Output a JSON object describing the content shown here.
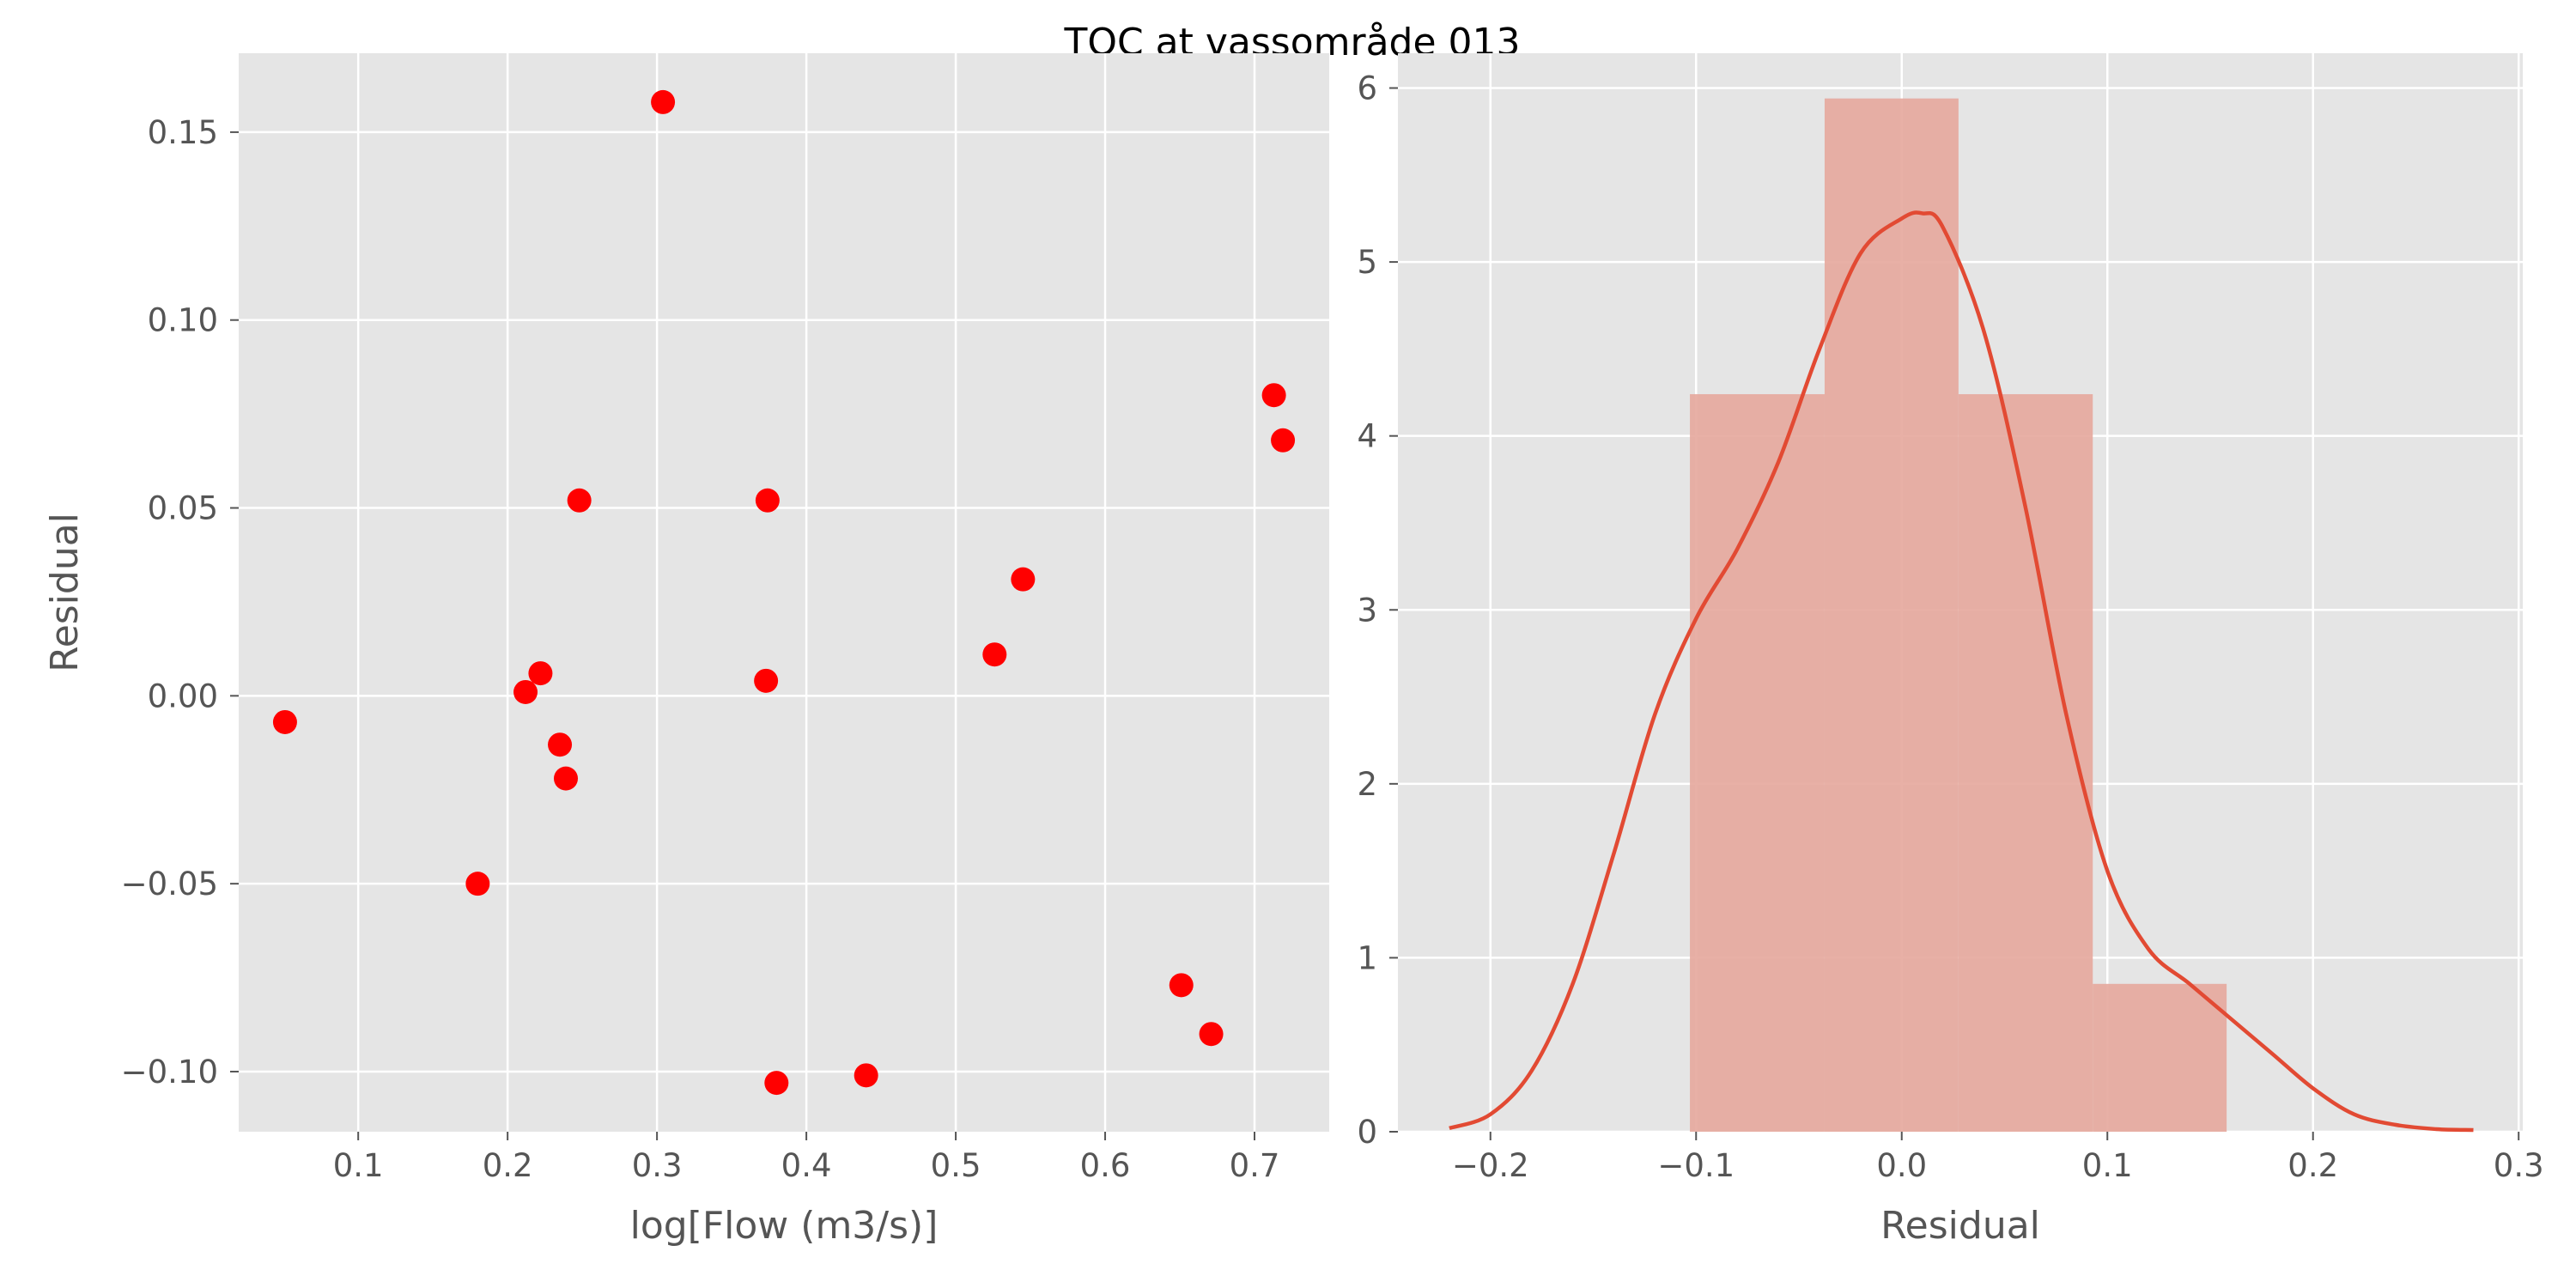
{
  "figure": {
    "title": "TOC at vassområde 013"
  },
  "colors": {
    "panel_bg": "#e5e5e5",
    "grid": "#ffffff",
    "tick_text": "#555555",
    "scatter": "#ff0000",
    "hist_fill": "#e5a79c",
    "kde_line": "#e24a33"
  },
  "chart_data": [
    {
      "type": "scatter",
      "title": "",
      "xlabel": "log[Flow (m3/s)]",
      "ylabel": "Residual",
      "xlim": [
        0.02,
        0.75
      ],
      "ylim": [
        -0.116,
        0.171
      ],
      "xticks": [
        0.1,
        0.2,
        0.3,
        0.4,
        0.5,
        0.6,
        0.7
      ],
      "xtick_labels": [
        "0.1",
        "0.2",
        "0.3",
        "0.4",
        "0.5",
        "0.6",
        "0.7"
      ],
      "yticks": [
        -0.1,
        -0.05,
        0.0,
        0.05,
        0.1,
        0.15
      ],
      "ytick_labels": [
        "−0.10",
        "−0.05",
        "0.00",
        "0.05",
        "0.10",
        "0.15"
      ],
      "grid": true,
      "points": [
        {
          "x": 0.051,
          "y": -0.007
        },
        {
          "x": 0.18,
          "y": -0.05
        },
        {
          "x": 0.212,
          "y": 0.001
        },
        {
          "x": 0.222,
          "y": 0.006
        },
        {
          "x": 0.235,
          "y": -0.013
        },
        {
          "x": 0.239,
          "y": -0.022
        },
        {
          "x": 0.248,
          "y": 0.052
        },
        {
          "x": 0.304,
          "y": 0.158
        },
        {
          "x": 0.373,
          "y": 0.004
        },
        {
          "x": 0.374,
          "y": 0.052
        },
        {
          "x": 0.38,
          "y": -0.103
        },
        {
          "x": 0.44,
          "y": -0.101
        },
        {
          "x": 0.526,
          "y": 0.011
        },
        {
          "x": 0.545,
          "y": 0.031
        },
        {
          "x": 0.651,
          "y": -0.077
        },
        {
          "x": 0.671,
          "y": -0.09
        },
        {
          "x": 0.713,
          "y": 0.08
        },
        {
          "x": 0.719,
          "y": 0.068
        }
      ]
    },
    {
      "type": "histogram",
      "title": "",
      "xlabel": "Residual",
      "ylabel": "",
      "xlim": [
        -0.245,
        0.302
      ],
      "ylim": [
        0,
        6.2
      ],
      "xticks": [
        -0.2,
        -0.1,
        0.0,
        0.1,
        0.2,
        0.3
      ],
      "xtick_labels": [
        "−0.2",
        "−0.1",
        "0.0",
        "0.1",
        "0.2",
        "0.3"
      ],
      "yticks": [
        0,
        1,
        2,
        3,
        4,
        5,
        6
      ],
      "ytick_labels": [
        "0",
        "1",
        "2",
        "3",
        "4",
        "5",
        "6"
      ],
      "grid": true,
      "bins": [
        {
          "x0": -0.103,
          "x1": -0.0375,
          "height": 4.24
        },
        {
          "x0": -0.0375,
          "x1": 0.0276,
          "height": 5.94
        },
        {
          "x0": 0.0276,
          "x1": 0.0929,
          "height": 4.24
        },
        {
          "x0": 0.0929,
          "x1": 0.158,
          "height": 0.85
        }
      ],
      "kde": {
        "x": [
          -0.22,
          -0.2,
          -0.18,
          -0.16,
          -0.14,
          -0.12,
          -0.1,
          -0.08,
          -0.06,
          -0.04,
          -0.02,
          0.0,
          0.01,
          0.02,
          0.04,
          0.06,
          0.08,
          0.1,
          0.12,
          0.14,
          0.16,
          0.18,
          0.2,
          0.22,
          0.24,
          0.26,
          0.278
        ],
        "y": [
          0.02,
          0.1,
          0.35,
          0.85,
          1.6,
          2.4,
          2.95,
          3.35,
          3.85,
          4.5,
          5.05,
          5.25,
          5.28,
          5.2,
          4.6,
          3.6,
          2.4,
          1.5,
          1.05,
          0.85,
          0.65,
          0.45,
          0.25,
          0.1,
          0.04,
          0.015,
          0.01
        ]
      }
    }
  ]
}
